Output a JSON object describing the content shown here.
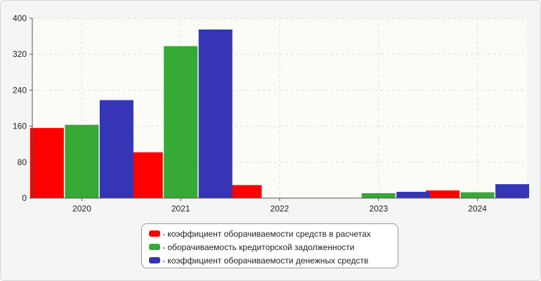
{
  "chart_data": {
    "type": "bar",
    "categories": [
      "2020",
      "2021",
      "2022",
      "2023",
      "2024"
    ],
    "series": [
      {
        "name": "- коэффициент оборачиваемости средств в расчетах",
        "color": "#ff0000",
        "values": [
          156,
          102,
          29,
          0,
          17
        ]
      },
      {
        "name": "- оборачиваемость кредиторской задолженности",
        "color": "#36a936",
        "values": [
          163,
          338,
          0,
          11,
          13
        ]
      },
      {
        "name": "- коэффициент оборачиваемости денежных средств",
        "color": "#3535b5",
        "values": [
          218,
          375,
          0,
          14,
          31
        ]
      }
    ],
    "ylim": [
      0,
      400
    ],
    "yticks": [
      0,
      80,
      160,
      240,
      320,
      400
    ],
    "grid": true,
    "legend_position": "bottom"
  }
}
